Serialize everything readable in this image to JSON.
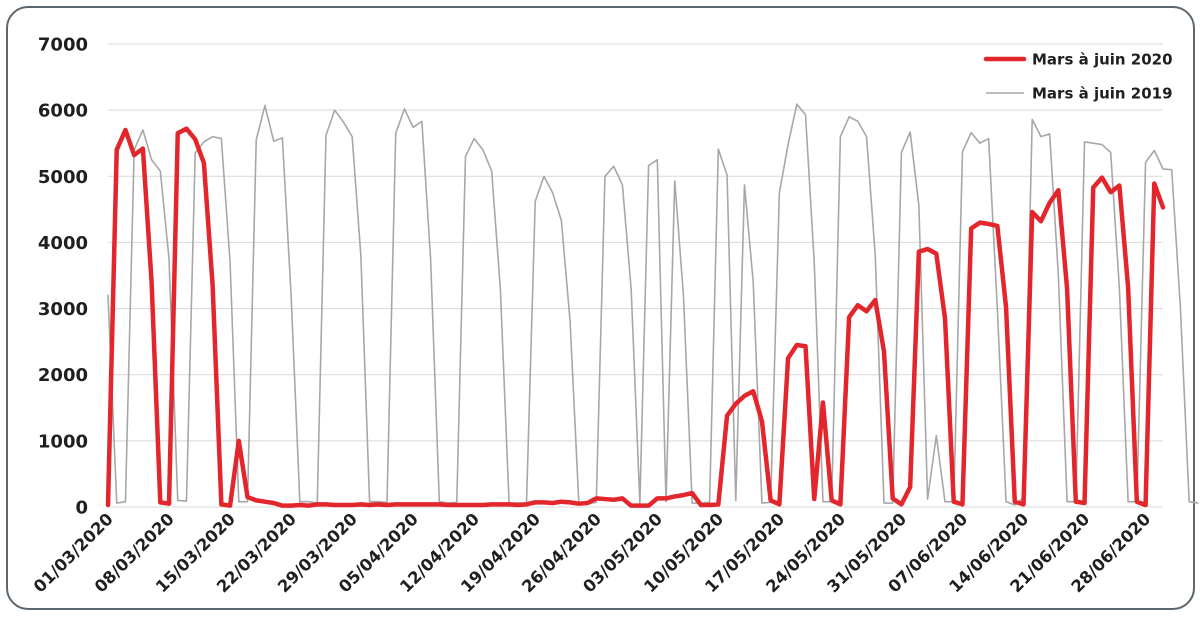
{
  "chart_data": {
    "type": "line",
    "title": "",
    "xlabel": "",
    "ylabel": "",
    "ylim": [
      0,
      7000
    ],
    "yticks": [
      0,
      1000,
      2000,
      3000,
      4000,
      5000,
      6000,
      7000
    ],
    "grid": true,
    "legend_position": "top-right",
    "x_start": "2020-03-01",
    "x_end": "2020-06-30",
    "xtick_labels": [
      "01/03/2020",
      "08/03/2020",
      "15/03/2020",
      "22/03/2020",
      "29/03/2020",
      "05/04/2020",
      "12/04/2020",
      "19/04/2020",
      "26/04/2020",
      "03/05/2020",
      "10/05/2020",
      "17/05/2020",
      "24/05/2020",
      "31/05/2020",
      "07/06/2020",
      "14/06/2020",
      "21/06/2020",
      "28/06/2020"
    ],
    "series": [
      {
        "name": "Mars à juin 2020",
        "color": "#e3262c",
        "values": [
          30,
          5400,
          5700,
          5320,
          5420,
          3400,
          70,
          50,
          5650,
          5720,
          5560,
          5200,
          3350,
          40,
          20,
          1000,
          150,
          100,
          80,
          60,
          20,
          20,
          30,
          20,
          40,
          40,
          30,
          30,
          30,
          40,
          30,
          40,
          30,
          40,
          40,
          40,
          40,
          40,
          40,
          30,
          30,
          30,
          30,
          30,
          40,
          40,
          40,
          30,
          40,
          70,
          70,
          60,
          80,
          70,
          50,
          60,
          130,
          120,
          110,
          130,
          20,
          20,
          20,
          130,
          130,
          160,
          180,
          210,
          30,
          30,
          40,
          1380,
          1560,
          1680,
          1750,
          1300,
          100,
          40,
          2250,
          2450,
          2430,
          120,
          1580,
          100,
          40,
          2870,
          3050,
          2960,
          3130,
          2350,
          130,
          40,
          300,
          3860,
          3900,
          3830,
          2850,
          80,
          40,
          4210,
          4300,
          4280,
          4250,
          3020,
          80,
          40,
          4460,
          4320,
          4600,
          4790,
          3300,
          80,
          60,
          4830,
          4980,
          4760,
          4860,
          3320,
          80,
          30,
          4890,
          4530
        ]
      },
      {
        "name": "Mars à juin 2019",
        "color": "#a7a7a7",
        "values": [
          3200,
          60,
          80,
          5400,
          5700,
          5250,
          5080,
          3750,
          100,
          90,
          5350,
          5520,
          5600,
          5570,
          3700,
          80,
          80,
          5550,
          6070,
          5530,
          5580,
          3200,
          80,
          80,
          60,
          5620,
          6000,
          5820,
          5600,
          3800,
          80,
          80,
          70,
          5650,
          6020,
          5740,
          5830,
          3750,
          80,
          60,
          70,
          5300,
          5570,
          5400,
          5080,
          3300,
          60,
          60,
          60,
          4620,
          5000,
          4750,
          4330,
          2800,
          60,
          50,
          70,
          5000,
          5150,
          4870,
          3300,
          60,
          5160,
          5250,
          80,
          4930,
          3200,
          60,
          60,
          70,
          5410,
          5020,
          100,
          4870,
          3400,
          60,
          70,
          4750,
          5480,
          6090,
          5930,
          3700,
          80,
          80,
          5600,
          5900,
          5830,
          5600,
          3800,
          60,
          60,
          5360,
          5670,
          4560,
          120,
          1080,
          80,
          80,
          5370,
          5660,
          5500,
          5570,
          3000,
          80,
          30,
          140,
          5860,
          5600,
          5640,
          3500,
          80,
          80,
          5520,
          5500,
          5480,
          5360,
          3300,
          80,
          80,
          5210,
          5390,
          5110,
          5100,
          3000,
          80,
          60
        ]
      }
    ]
  }
}
